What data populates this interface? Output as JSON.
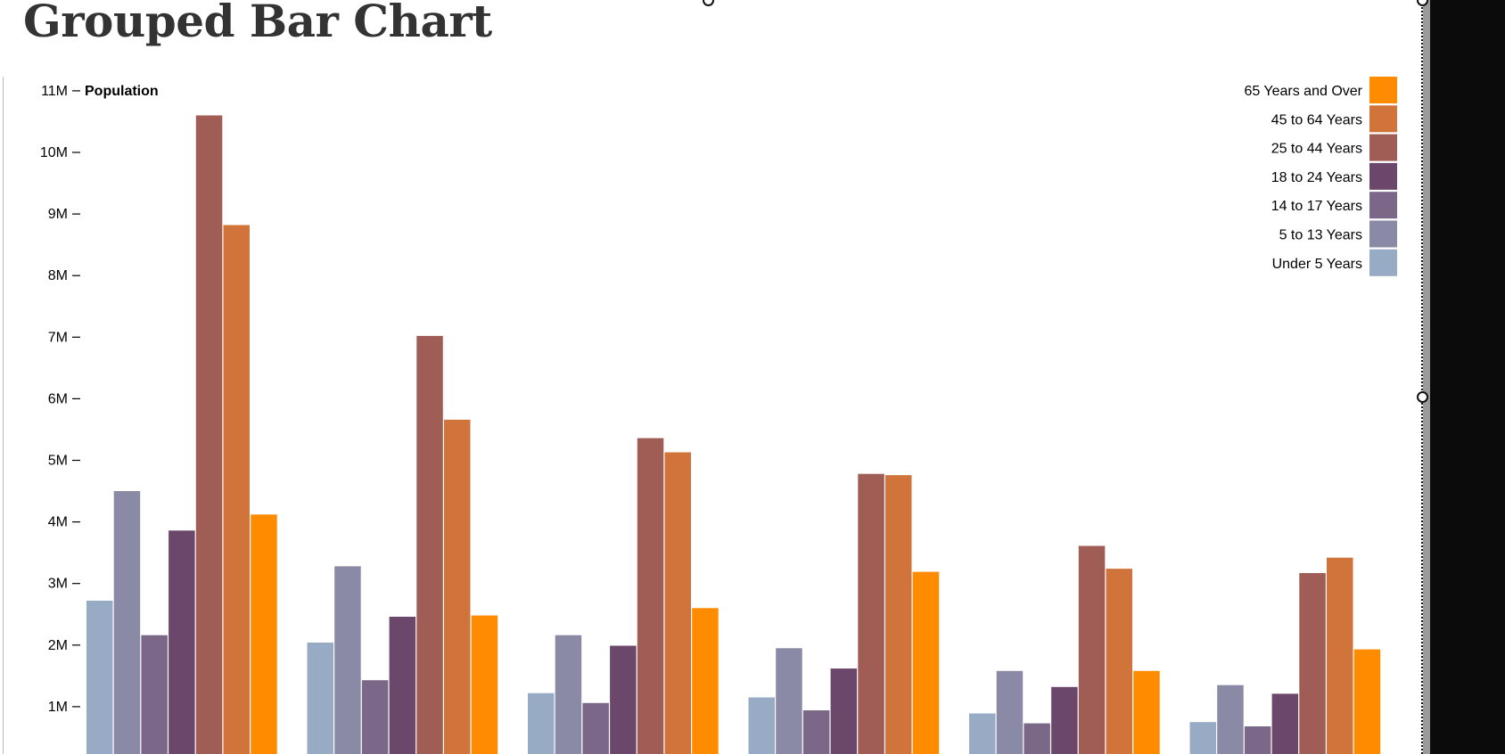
{
  "page": {
    "title": "Grouped Bar Chart"
  },
  "chart_data": {
    "type": "bar",
    "title": "",
    "xlabel": "",
    "ylabel": "Population",
    "ylim": [
      0,
      11000000
    ],
    "yticks": [
      {
        "value": 1000000,
        "label": "1M"
      },
      {
        "value": 2000000,
        "label": "2M"
      },
      {
        "value": 3000000,
        "label": "3M"
      },
      {
        "value": 4000000,
        "label": "4M"
      },
      {
        "value": 5000000,
        "label": "5M"
      },
      {
        "value": 6000000,
        "label": "6M"
      },
      {
        "value": 7000000,
        "label": "7M"
      },
      {
        "value": 8000000,
        "label": "8M"
      },
      {
        "value": 9000000,
        "label": "9M"
      },
      {
        "value": 10000000,
        "label": "10M"
      },
      {
        "value": 11000000,
        "label": "11M"
      }
    ],
    "grid": false,
    "legend_position": "top-right",
    "groups_count": 6,
    "series": [
      {
        "name": "Under 5 Years",
        "color": "#98abc5",
        "values": [
          2720000,
          2040000,
          1220000,
          1150000,
          890000,
          750000
        ]
      },
      {
        "name": "5 to 13 Years",
        "color": "#8a89a6",
        "values": [
          4500000,
          3280000,
          2160000,
          1950000,
          1580000,
          1350000
        ]
      },
      {
        "name": "14 to 17 Years",
        "color": "#7b6888",
        "values": [
          2160000,
          1430000,
          1060000,
          940000,
          730000,
          680000
        ]
      },
      {
        "name": "18 to 24 Years",
        "color": "#6b486b",
        "values": [
          3860000,
          2460000,
          1990000,
          1620000,
          1320000,
          1210000
        ]
      },
      {
        "name": "25 to 44 Years",
        "color": "#a05d56",
        "values": [
          10600000,
          7020000,
          5360000,
          4780000,
          3610000,
          3170000
        ]
      },
      {
        "name": "45 to 64 Years",
        "color": "#d0743c",
        "values": [
          8820000,
          5660000,
          5130000,
          4760000,
          3240000,
          3420000
        ]
      },
      {
        "name": "65 Years and Over",
        "color": "#ff8c00",
        "values": [
          4120000,
          2480000,
          2600000,
          3190000,
          1580000,
          1930000
        ]
      }
    ]
  }
}
